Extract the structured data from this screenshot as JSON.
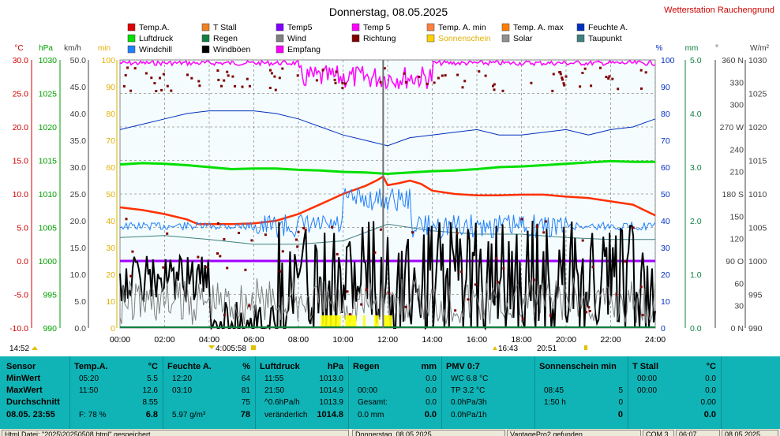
{
  "chart": {
    "title": "Donnerstag, 08.05.2025",
    "station": "Wetterstation Rauchengrund",
    "legend": [
      {
        "label": "Temp.A.",
        "color": "#e00000"
      },
      {
        "label": "T Stall",
        "color": "#f08020"
      },
      {
        "label": "Temp5",
        "color": "#8000ff"
      },
      {
        "label": "Temp 5",
        "color": "#ff00ff"
      },
      {
        "label": "Temp. A. min",
        "color": "#ff8040"
      },
      {
        "label": "Temp. A. max",
        "color": "#ff8000"
      },
      {
        "label": "Feuchte A.",
        "color": "#0030c0"
      },
      {
        "label": "Luftdruck",
        "color": "#00e000"
      },
      {
        "label": "Regen",
        "color": "#108040"
      },
      {
        "label": "Wind",
        "color": "#808080"
      },
      {
        "label": "Richtung",
        "color": "#800000"
      },
      {
        "label": "Sonnenschein",
        "color": "#ffd000"
      },
      {
        "label": "Solar",
        "color": "#909090"
      },
      {
        "label": "Taupunkt",
        "color": "#408080"
      },
      {
        "label": "Windchill",
        "color": "#2080ff"
      },
      {
        "label": "Windböen",
        "color": "#000000"
      },
      {
        "label": "Empfang",
        "color": "#ff00ff"
      }
    ],
    "axis_units_left": [
      "°C",
      "hPa",
      "km/h",
      "min"
    ],
    "axis_units_right": [
      "%",
      "mm",
      "°",
      "W/m²"
    ],
    "temp_ticks": [
      "30.0",
      "25.0",
      "20.0",
      "15.0",
      "10.0",
      "5.0",
      "0.0",
      "-5.0",
      "-10.0"
    ],
    "hpa_ticks": [
      "1030",
      "1025",
      "1020",
      "1015",
      "1010",
      "1005",
      "1000",
      "995",
      "990"
    ],
    "kmh_ticks": [
      "50.0",
      "45.0",
      "40.0",
      "35.0",
      "30.0",
      "25.0",
      "20.0",
      "15.0",
      "10.0",
      "5.0",
      "0.0"
    ],
    "min_ticks": [
      "100",
      "90",
      "80",
      "70",
      "60",
      "50",
      "40",
      "30",
      "20",
      "10",
      "0"
    ],
    "pct_ticks": [
      "100",
      "90",
      "80",
      "70",
      "60",
      "50",
      "40",
      "30",
      "20",
      "10",
      "0"
    ],
    "mm_ticks": [
      "5.0",
      "4.0",
      "3.0",
      "2.0",
      "1.0",
      "0.0"
    ],
    "deg_ticks": [
      "360 N",
      "330",
      "300",
      "270 W",
      "240",
      "210",
      "180 S",
      "150",
      "120",
      "90  O",
      "60",
      "30",
      "0   N"
    ],
    "wm2_ticks": [
      "1030",
      "1025",
      "1020",
      "1015",
      "1010",
      "1005",
      "1000",
      "995",
      "990"
    ],
    "time_ticks": [
      "00:00",
      "02:00",
      "04:00",
      "06:00",
      "08:00",
      "10:00",
      "12:00",
      "14:00",
      "16:00",
      "18:00",
      "20:00",
      "22:00",
      "24:00"
    ],
    "markers": {
      "m1": "14:52",
      "m2": "4:0",
      "m3": "05:58",
      "m4": "16:43",
      "m5": "20:51"
    },
    "colors": {
      "plot_bg": "#f4fcfd",
      "grid": "#909090",
      "panel": "#10b4b6"
    }
  },
  "chart_data": {
    "type": "line",
    "title": "Donnerstag, 08.05.2025",
    "x_unit": "hour",
    "xlim": [
      0,
      24
    ],
    "series": [
      {
        "name": "Temp.A.",
        "axis": "°C",
        "ylim": [
          -10,
          30
        ],
        "x": [
          0,
          1,
          2,
          3,
          3.5,
          4,
          5,
          6,
          7,
          8,
          9,
          10,
          11,
          11.5,
          11.8,
          12,
          12.5,
          13,
          13.5,
          14,
          15,
          16,
          17,
          18,
          19,
          20,
          21,
          22,
          23,
          24
        ],
        "y": [
          8.0,
          7.6,
          7.0,
          6.2,
          5.5,
          5.5,
          5.5,
          5.6,
          6.0,
          7.0,
          8.5,
          10.0,
          11.2,
          12.0,
          12.6,
          11.3,
          11.6,
          12.0,
          11.5,
          10.5,
          10.0,
          9.8,
          9.8,
          9.9,
          9.9,
          9.6,
          9.4,
          8.9,
          8.4,
          6.8
        ]
      },
      {
        "name": "Luftdruck",
        "axis": "hPa",
        "ylim": [
          990,
          1030
        ],
        "x": [
          0,
          1,
          2,
          3,
          4,
          5,
          6,
          7,
          8,
          9,
          10,
          11,
          12,
          13,
          14,
          15,
          16,
          17,
          18,
          19,
          20,
          21,
          22,
          23,
          24
        ],
        "y": [
          1014.4,
          1014.6,
          1014.5,
          1014.3,
          1014.0,
          1013.7,
          1013.8,
          1013.8,
          1013.6,
          1013.5,
          1013.3,
          1013.2,
          1013.0,
          1013.2,
          1013.4,
          1013.5,
          1013.7,
          1014.0,
          1014.1,
          1014.3,
          1014.5,
          1014.7,
          1014.9,
          1014.8,
          1014.8
        ]
      },
      {
        "name": "Feuchte A.",
        "axis": "%",
        "ylim": [
          0,
          100
        ],
        "x": [
          0,
          1,
          2,
          3,
          4,
          5,
          6,
          7,
          8,
          9,
          10,
          11,
          12,
          13,
          14,
          15,
          16,
          17,
          18,
          19,
          20,
          21,
          22,
          23,
          24
        ],
        "y": [
          74,
          76,
          78,
          80,
          81,
          81,
          81,
          80,
          78,
          75,
          72,
          70,
          68,
          71,
          72,
          73,
          74,
          72,
          72,
          73,
          74,
          72,
          74,
          75,
          78
        ]
      },
      {
        "name": "Temp5",
        "axis": "°C",
        "ylim": [
          -10,
          30
        ],
        "x": [
          0,
          24
        ],
        "y": [
          0,
          0
        ]
      },
      {
        "name": "Taupunkt",
        "axis": "°C",
        "ylim": [
          -10,
          30
        ],
        "x": [
          0,
          2,
          4,
          6,
          8,
          10,
          12,
          14,
          16,
          18,
          20,
          22,
          24
        ],
        "y": [
          3.5,
          3.8,
          3.2,
          2.5,
          2.5,
          3.0,
          5.5,
          4.5,
          4.0,
          4.0,
          3.5,
          3.2,
          3.2
        ]
      }
    ]
  },
  "summary": {
    "headers": {
      "sensor": "Sensor",
      "temp": "Temp.A.",
      "temp_u": "°C",
      "hum": "Feuchte A.",
      "hum_u": "%",
      "press": "Luftdruck",
      "press_u": "hPa",
      "rain": "Regen",
      "rain_u": "mm",
      "pmv": "PMV 0:7",
      "sun": "Sonnenschein min",
      "stall": "T Stall",
      "stall_u": "°C"
    },
    "rows": [
      "MinWert",
      "MaxWert",
      "Durchschnitt",
      "08.05. 23:55"
    ],
    "temp": [
      [
        "05:20",
        "5.5"
      ],
      [
        "11:50",
        "12.6"
      ],
      [
        "",
        "8.55"
      ],
      [
        "F: 78 %",
        "6.8"
      ]
    ],
    "hum": [
      [
        "12:20",
        "64"
      ],
      [
        "03:10",
        "81"
      ],
      [
        "",
        "75"
      ],
      [
        "5.97 g/m³",
        "78"
      ]
    ],
    "press": [
      [
        "11:55",
        "1013.0"
      ],
      [
        "21:50",
        "1014.9"
      ],
      [
        "^0.6hPa/h",
        "1013.9"
      ],
      [
        "veränderlich",
        "1014.8"
      ]
    ],
    "rain": [
      [
        "",
        "0.0"
      ],
      [
        "00:00",
        "0.0"
      ],
      [
        "Gesamt:",
        "0.0"
      ],
      [
        "0.0 mm",
        "0.0"
      ]
    ],
    "pmv": [
      [
        "WC 6.8 °C",
        ""
      ],
      [
        "TP 3.2 °C",
        ""
      ],
      [
        "0.0hPa/3h",
        ""
      ],
      [
        "0.0hPa/1h",
        ""
      ]
    ],
    "sun": [
      [
        "",
        ""
      ],
      [
        "08:45",
        "5"
      ],
      [
        "1:50 h",
        "0"
      ],
      [
        "",
        "0"
      ]
    ],
    "stall": [
      [
        "00:00",
        "0.0"
      ],
      [
        "00:00",
        "0.0"
      ],
      [
        "",
        "0.00"
      ],
      [
        "",
        "0.0"
      ]
    ]
  },
  "status": {
    "file": "Html Datei: \"2025\\20250508.html\" gespeichert",
    "date": "Donnerstag, 08.05.2025",
    "device": "VantagePro2 gefunden",
    "port": "COM 3",
    "time": "06:07",
    "today": "08.05.2025"
  }
}
